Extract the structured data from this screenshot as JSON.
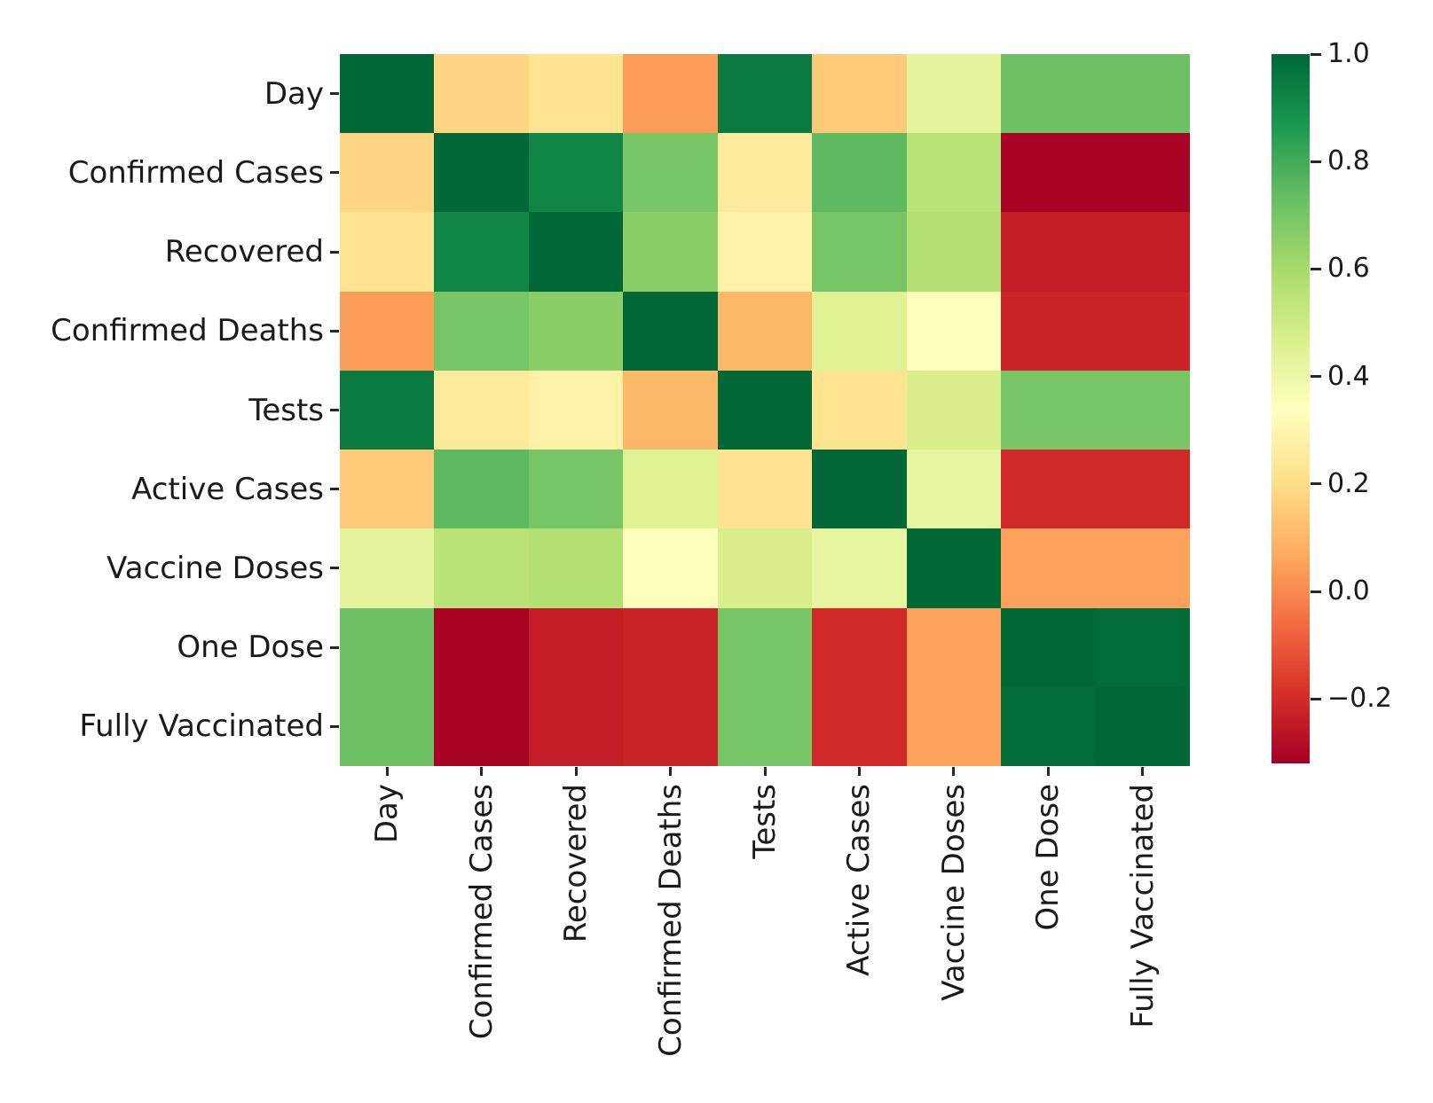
{
  "chart_data": {
    "type": "heatmap",
    "title": "",
    "variables": [
      "Day",
      "Confirmed Cases",
      "Recovered",
      "Confirmed Deaths",
      "Tests",
      "Active Cases",
      "Vaccine Doses",
      "One Dose",
      "Fully Vaccinated"
    ],
    "matrix": [
      [
        1.0,
        0.18,
        0.22,
        0.04,
        0.95,
        0.15,
        0.43,
        0.72,
        0.72
      ],
      [
        0.18,
        1.0,
        0.92,
        0.7,
        0.25,
        0.75,
        0.55,
        -0.31,
        -0.31
      ],
      [
        0.22,
        0.92,
        1.0,
        0.66,
        0.28,
        0.7,
        0.57,
        -0.24,
        -0.24
      ],
      [
        0.04,
        0.7,
        0.66,
        1.0,
        0.1,
        0.45,
        0.35,
        -0.22,
        -0.22
      ],
      [
        0.95,
        0.25,
        0.28,
        0.1,
        1.0,
        0.22,
        0.47,
        0.7,
        0.7
      ],
      [
        0.15,
        0.75,
        0.7,
        0.45,
        0.22,
        1.0,
        0.42,
        -0.21,
        -0.21
      ],
      [
        0.43,
        0.55,
        0.57,
        0.35,
        0.47,
        0.42,
        1.0,
        0.05,
        0.05
      ],
      [
        0.72,
        -0.31,
        -0.24,
        -0.22,
        0.7,
        -0.21,
        0.05,
        1.0,
        0.99
      ],
      [
        0.72,
        -0.31,
        -0.24,
        -0.22,
        0.7,
        -0.21,
        0.05,
        0.99,
        1.0
      ]
    ],
    "vmin": -0.32,
    "vmax": 1.0,
    "grid": false,
    "legend_position": "right-colorbar",
    "colorbar_ticks": {
      "values": [
        1.0,
        0.8,
        0.6,
        0.4,
        0.2,
        0.0,
        -0.2
      ],
      "labels": [
        "1.0",
        "0.8",
        "0.6",
        "0.4",
        "0.2",
        "0.0",
        "−0.2"
      ]
    },
    "colormap": {
      "name": "RdYlGn",
      "stops": [
        {
          "t": 0.0,
          "color": "#a50026"
        },
        {
          "t": 0.1,
          "color": "#d73027"
        },
        {
          "t": 0.2,
          "color": "#f46d43"
        },
        {
          "t": 0.3,
          "color": "#fdae61"
        },
        {
          "t": 0.4,
          "color": "#fee08b"
        },
        {
          "t": 0.5,
          "color": "#ffffbf"
        },
        {
          "t": 0.6,
          "color": "#d9ef8b"
        },
        {
          "t": 0.7,
          "color": "#a6d96a"
        },
        {
          "t": 0.8,
          "color": "#66bd63"
        },
        {
          "t": 0.9,
          "color": "#1a9850"
        },
        {
          "t": 1.0,
          "color": "#006837"
        }
      ]
    }
  }
}
